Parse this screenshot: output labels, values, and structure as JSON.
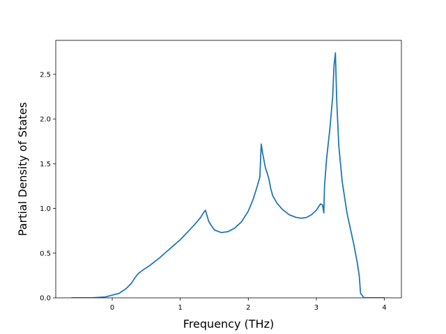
{
  "chart_data": {
    "type": "line",
    "title": "",
    "xlabel": "Frequency (THz)",
    "ylabel": "Partial Density of States",
    "xlim": [
      -0.83,
      4.25
    ],
    "ylim": [
      0.0,
      2.88
    ],
    "xticks": [
      0,
      1,
      2,
      3,
      4
    ],
    "yticks": [
      0.0,
      0.5,
      1.0,
      1.5,
      2.0,
      2.5
    ],
    "xtick_labels": [
      "0",
      "1",
      "2",
      "3",
      "4"
    ],
    "ytick_labels": [
      "0.0",
      "0.5",
      "1.0",
      "1.5",
      "2.0",
      "2.5"
    ],
    "grid": false,
    "line_color": "#1f77b4",
    "series": [
      {
        "x": [
          -0.6,
          -0.3,
          -0.1,
          0.0,
          0.1,
          0.2,
          0.28,
          0.33,
          0.38,
          0.45,
          0.55,
          0.7,
          0.85,
          1.0,
          1.1,
          1.2,
          1.3,
          1.34,
          1.37,
          1.42,
          1.5,
          1.6,
          1.7,
          1.8,
          1.9,
          2.0,
          2.07,
          2.12,
          2.17,
          2.19,
          2.21,
          2.25,
          2.3,
          2.33,
          2.36,
          2.42,
          2.5,
          2.6,
          2.7,
          2.78,
          2.86,
          2.93,
          3.0,
          3.06,
          3.09,
          3.11,
          3.12,
          3.15,
          3.2,
          3.24,
          3.26,
          3.28,
          3.3,
          3.33,
          3.38,
          3.45,
          3.55,
          3.6,
          3.63,
          3.65,
          3.7,
          3.8,
          3.9,
          4.0
        ],
        "y": [
          0.0,
          0.0,
          0.01,
          0.03,
          0.05,
          0.1,
          0.16,
          0.22,
          0.27,
          0.31,
          0.36,
          0.45,
          0.55,
          0.65,
          0.73,
          0.81,
          0.9,
          0.95,
          0.98,
          0.85,
          0.76,
          0.73,
          0.74,
          0.78,
          0.85,
          0.97,
          1.1,
          1.22,
          1.35,
          1.72,
          1.62,
          1.46,
          1.34,
          1.22,
          1.14,
          1.06,
          0.99,
          0.93,
          0.9,
          0.89,
          0.9,
          0.93,
          0.98,
          1.05,
          1.04,
          0.95,
          1.25,
          1.55,
          1.9,
          2.25,
          2.6,
          2.74,
          2.2,
          1.7,
          1.3,
          0.95,
          0.6,
          0.4,
          0.25,
          0.05,
          0.0,
          0.0,
          0.0,
          0.0
        ]
      }
    ]
  }
}
